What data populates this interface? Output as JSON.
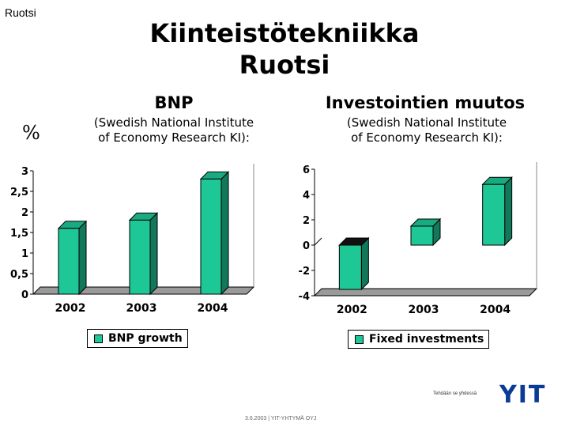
{
  "corner_label": "Ruotsi",
  "title_line1": "Kiinteistötekniikka",
  "title_line2": "Ruotsi",
  "percent_label": "%",
  "chart_data": [
    {
      "type": "bar",
      "title": "BNP",
      "subtitle_line1": "(Swedish National Institute",
      "subtitle_line2": "of Economy Research KI):",
      "categories": [
        "2002",
        "2003",
        "2004"
      ],
      "series": [
        {
          "name": "BNP growth",
          "values": [
            1.6,
            1.8,
            2.8
          ]
        }
      ],
      "ylim": [
        0,
        3
      ],
      "yticks": [
        "0",
        "0,5",
        "1",
        "1,5",
        "2",
        "2,5",
        "3"
      ],
      "ytick_values": [
        0,
        0.5,
        1,
        1.5,
        2,
        2.5,
        3
      ],
      "legend": "bottom",
      "grid": false,
      "color": "#1ec896"
    },
    {
      "type": "bar",
      "title": "Investointien muutos",
      "subtitle_line1": "(Swedish National Institute",
      "subtitle_line2": "of Economy Research KI):",
      "categories": [
        "2002",
        "2003",
        "2004"
      ],
      "series": [
        {
          "name": "Fixed investments",
          "values": [
            -3.5,
            1.5,
            4.8
          ]
        }
      ],
      "ylim": [
        -4,
        6
      ],
      "yticks": [
        "-4",
        "-2",
        "0",
        "2",
        "4",
        "6"
      ],
      "ytick_values": [
        -4,
        -2,
        0,
        2,
        4,
        6
      ],
      "legend": "bottom",
      "grid": false,
      "color": "#1ec896"
    }
  ],
  "footer": {
    "tagline": "Tehdään se yhdessä",
    "logo": "YIT",
    "date_line": "3.6.2003  |  YIT-YHTYMÄ OYJ"
  }
}
